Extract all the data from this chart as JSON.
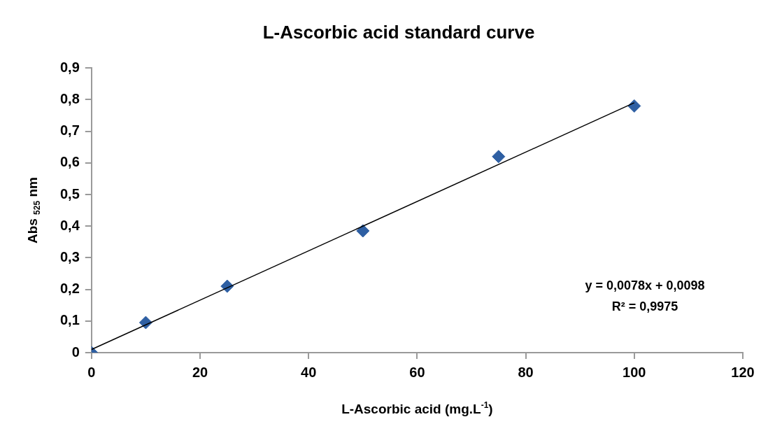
{
  "chart_data": {
    "type": "scatter",
    "title": "L-Ascorbic acid standard curve",
    "xlabel": "L-Ascorbic acid (mg.L$^{-1}$)",
    "ylabel": "Abs $_{525}$ nm",
    "x": [
      0,
      10,
      25,
      50,
      75,
      100
    ],
    "series": [
      {
        "color": "#2e5fa3",
        "values": [
          0,
          0.095,
          0.21,
          0.385,
          0.62,
          0.78
        ],
        "marker": "diamond"
      },
      {
        "type": "line",
        "color": "#000000",
        "x": [
          0,
          100
        ],
        "values": [
          0.01,
          0.79
        ],
        "marker": "none",
        "line_style": "solid"
      }
    ],
    "xlim": [
      0,
      120
    ],
    "xticks": [
      0,
      20,
      40,
      60,
      80,
      100,
      120
    ],
    "ylim": [
      0,
      0.9
    ],
    "yticks": [
      0,
      {
        "value": 0.1,
        "label": "0,1"
      },
      {
        "value": 0.2,
        "label": "0,2"
      },
      {
        "value": 0.3,
        "label": "0,3"
      },
      {
        "value": 0.4,
        "label": "0,4"
      },
      {
        "value": 0.5,
        "label": "0,5"
      },
      {
        "value": 0.6,
        "label": "0,6"
      },
      {
        "value": 0.7,
        "label": "0,7"
      },
      {
        "value": 0.8,
        "label": "0,8"
      },
      {
        "value": 0.9,
        "label": "0,9"
      }
    ],
    "annotations": [
      "y = 0,0078x + 0,0098",
      "R² = 0,9975"
    ],
    "grid": false,
    "legend": false
  }
}
